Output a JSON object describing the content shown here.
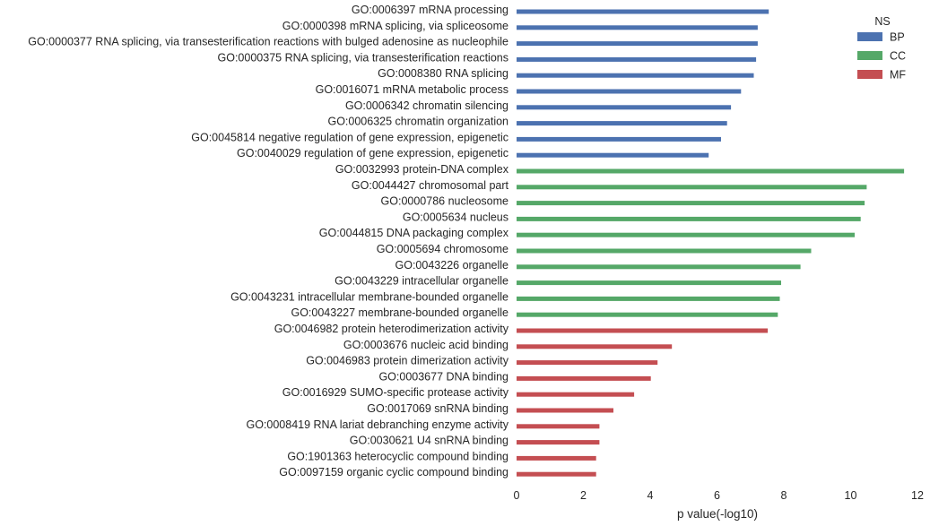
{
  "chart_data": {
    "type": "bar",
    "orientation": "horizontal",
    "xlabel": "p value(-log10)",
    "ylabel": "",
    "xlim": [
      0,
      12
    ],
    "xticks": [
      0,
      2,
      4,
      6,
      8,
      10,
      12
    ],
    "grid": false,
    "legend": {
      "title": "NS",
      "placement": "top-right"
    },
    "series": [
      {
        "name": "BP",
        "color": "#4c72b0"
      },
      {
        "name": "CC",
        "color": "#55a868"
      },
      {
        "name": "MF",
        "color": "#c44e52"
      }
    ],
    "bars": [
      {
        "label": "GO:0006397 mRNA processing",
        "ns": "BP",
        "value": 7.55
      },
      {
        "label": "GO:0000398 mRNA splicing, via spliceosome",
        "ns": "BP",
        "value": 7.22
      },
      {
        "label": "GO:0000377 RNA splicing, via transesterification reactions with bulged adenosine as nucleophile",
        "ns": "BP",
        "value": 7.22
      },
      {
        "label": "GO:0000375 RNA splicing, via transesterification reactions",
        "ns": "BP",
        "value": 7.17
      },
      {
        "label": "GO:0008380 RNA splicing",
        "ns": "BP",
        "value": 7.1
      },
      {
        "label": "GO:0016071 mRNA metabolic process",
        "ns": "BP",
        "value": 6.72
      },
      {
        "label": "GO:0006342 chromatin silencing",
        "ns": "BP",
        "value": 6.42
      },
      {
        "label": "GO:0006325 chromatin organization",
        "ns": "BP",
        "value": 6.3
      },
      {
        "label": "GO:0045814 negative regulation of gene expression, epigenetic",
        "ns": "BP",
        "value": 6.12
      },
      {
        "label": "GO:0040029 regulation of gene expression, epigenetic",
        "ns": "BP",
        "value": 5.75
      },
      {
        "label": "GO:0032993 protein-DNA complex",
        "ns": "CC",
        "value": 11.6
      },
      {
        "label": "GO:0044427 chromosomal part",
        "ns": "CC",
        "value": 10.48
      },
      {
        "label": "GO:0000786 nucleosome",
        "ns": "CC",
        "value": 10.42
      },
      {
        "label": "GO:0005634 nucleus",
        "ns": "CC",
        "value": 10.3
      },
      {
        "label": "GO:0044815 DNA packaging complex",
        "ns": "CC",
        "value": 10.12
      },
      {
        "label": "GO:0005694 chromosome",
        "ns": "CC",
        "value": 8.82
      },
      {
        "label": "GO:0043226 organelle",
        "ns": "CC",
        "value": 8.5
      },
      {
        "label": "GO:0043229 intracellular organelle",
        "ns": "CC",
        "value": 7.92
      },
      {
        "label": "GO:0043231 intracellular membrane-bounded organelle",
        "ns": "CC",
        "value": 7.88
      },
      {
        "label": "GO:0043227 membrane-bounded organelle",
        "ns": "CC",
        "value": 7.82
      },
      {
        "label": "GO:0046982 protein heterodimerization activity",
        "ns": "MF",
        "value": 7.52
      },
      {
        "label": "GO:0003676 nucleic acid binding",
        "ns": "MF",
        "value": 4.65
      },
      {
        "label": "GO:0046983 protein dimerization activity",
        "ns": "MF",
        "value": 4.22
      },
      {
        "label": "GO:0003677 DNA binding",
        "ns": "MF",
        "value": 4.02
      },
      {
        "label": "GO:0016929 SUMO-specific protease activity",
        "ns": "MF",
        "value": 3.52
      },
      {
        "label": "GO:0017069 snRNA binding",
        "ns": "MF",
        "value": 2.9
      },
      {
        "label": "GO:0008419 RNA lariat debranching enzyme activity",
        "ns": "MF",
        "value": 2.48
      },
      {
        "label": "GO:0030621 U4 snRNA binding",
        "ns": "MF",
        "value": 2.48
      },
      {
        "label": "GO:1901363 heterocyclic compound binding",
        "ns": "MF",
        "value": 2.38
      },
      {
        "label": "GO:0097159 organic cyclic compound binding",
        "ns": "MF",
        "value": 2.38
      }
    ]
  }
}
